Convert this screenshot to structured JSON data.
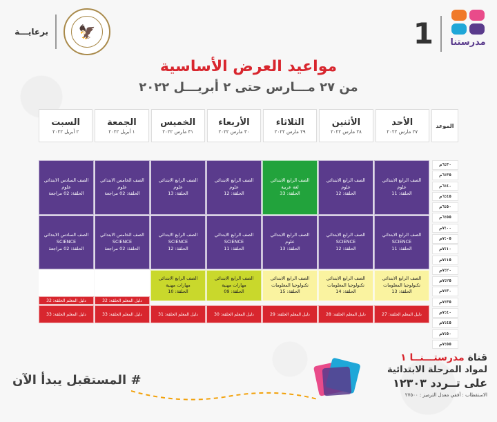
{
  "header": {
    "patron_label": "برعايـــة",
    "logo_text": "مدرستنا",
    "channel_number": "1",
    "title": "مواعيد العرض الأساسية",
    "subtitle": "من ٢٧ مـــارس حتى ٢ أبريـــل ٢٠٢٢"
  },
  "colors": {
    "purple": "#5a3b8c",
    "green": "#22a33c",
    "yellow": "#faf3a0",
    "lime": "#c9d82c",
    "red": "#d8262e"
  },
  "schedule": {
    "time_header": "الموعد",
    "days": [
      {
        "name": "الأحد",
        "date": "٢٧ مارس ٢٠٢٢"
      },
      {
        "name": "الأثنين",
        "date": "٢٨ مارس ٢٠٢٢"
      },
      {
        "name": "الثلاثاء",
        "date": "٢٩ مارس ٢٠٢٢"
      },
      {
        "name": "الأربعاء",
        "date": "٣٠ مارس ٢٠٢٢"
      },
      {
        "name": "الخميس",
        "date": "٣١ مارس ٢٠٢٢"
      },
      {
        "name": "الجمعة",
        "date": "١ أبريل ٢٠٢٢"
      },
      {
        "name": "السبت",
        "date": "٢ أبريل ٢٠٢٢"
      }
    ],
    "times": [
      "٦:٣٠م",
      "٦:٣٥م",
      "٦:٤٠م",
      "٦:٤٥م",
      "٦:٥٠م",
      "٦:٥٥م",
      "٧:٠٠م",
      "٧:٠٥م",
      "٧:١٠م",
      "٧:١٥م",
      "٧:٢٠م",
      "٧:٢٥م",
      "٧:٣٠م",
      "٧:٣٥م",
      "٧:٤٠م",
      "٧:٤٥م",
      "٧:٥٠م",
      "٧:٥٥م"
    ],
    "block1": [
      {
        "l1": "الصف الرابع الابتدائي",
        "l2": "علوم",
        "l3": "الحلقة: 11"
      },
      {
        "l1": "الصف الرابع الابتدائي",
        "l2": "علوم",
        "l3": "الحلقة: 12"
      },
      {
        "l1": "الصف الرابع الابتدائي",
        "l2": "لغة عربية",
        "l3": "الحلقة: 33"
      },
      {
        "l1": "الصف الرابع الابتدائي",
        "l2": "علوم",
        "l3": "الحلقة: 12"
      },
      {
        "l1": "الصف الرابع الابتدائي",
        "l2": "علوم",
        "l3": "الحلقة: 13"
      },
      {
        "l1": "الصف الخامس الابتدائي",
        "l2": "علوم",
        "l3": "الحلقة: 02 مراجعة"
      },
      {
        "l1": "الصف السادس الابتدائي",
        "l2": "علوم",
        "l3": "الحلقة: 02 مراجعة"
      }
    ],
    "block2": [
      {
        "l1": "الصف الرابع الابتدائي",
        "l2": "SCIENCE",
        "l3": "الحلقة: 11"
      },
      {
        "l1": "الصف الرابع الابتدائي",
        "l2": "SCIENCE",
        "l3": "الحلقة: 12"
      },
      {
        "l1": "الصف الرابع الابتدائي",
        "l2": "علوم",
        "l3": "الحلقة: 13"
      },
      {
        "l1": "الصف الرابع الابتدائي",
        "l2": "SCIENCE",
        "l3": "الحلقة: 11"
      },
      {
        "l1": "الصف الرابع الابتدائي",
        "l2": "SCIENCE",
        "l3": "الحلقة: 12"
      },
      {
        "l1": "الصف الخامس الابتدائي",
        "l2": "SCIENCE",
        "l3": "الحلقة: 02 مراجعة"
      },
      {
        "l1": "الصف السادس الابتدائي",
        "l2": "SCIENCE",
        "l3": "الحلقة: 02 مراجعة"
      }
    ],
    "block3": [
      {
        "l1": "الصف الرابع الابتدائي",
        "l2": "تكنولوجيا المعلومات",
        "l3": "الحلقة: 13"
      },
      {
        "l1": "الصف الرابع الابتدائي",
        "l2": "تكنولوجيا المعلومات",
        "l3": "الحلقة: 14"
      },
      {
        "l1": "الصف الرابع الابتدائي",
        "l2": "تكنولوجيا المعلومات",
        "l3": "الحلقة: 15"
      },
      {
        "l1": "الصف الرابع الابتدائي",
        "l2": "مهارات مهنية",
        "l3": "الحلقة: 09"
      },
      {
        "l1": "الصف الرابع الابتدائي",
        "l2": "مهارات مهنية",
        "l3": "الحلقة: 10"
      }
    ],
    "guide_row1": [
      {
        "day": "الجمعة",
        "text": "دليل المعلم الحلقة: 32"
      },
      {
        "day": "السبت",
        "text": "دليل المعلم الحلقة: 32"
      }
    ],
    "guide_row2": [
      "دليل المعلم الحلقة: 27",
      "دليل المعلم الحلقة: 28",
      "دليل المعلم الحلقة: 29",
      "دليل المعلم الحلقة: 30",
      "دليل المعلم الحلقة: 31",
      "دليل المعلم الحلقة: 33",
      "دليل المعلم الحلقة: 33"
    ]
  },
  "footer": {
    "hashtag": "# المستقبل يبدأ الآن",
    "channel_prefix": "قناة",
    "channel_name": "مدرستـــنــا ١",
    "line2": "لمواد المرحلة الابتدائية",
    "line3": "على تــردد ١٢٣٠٣",
    "line4": "الاستقطاب : أفقي معدل الترميز : ٢٧٥٠٠"
  }
}
